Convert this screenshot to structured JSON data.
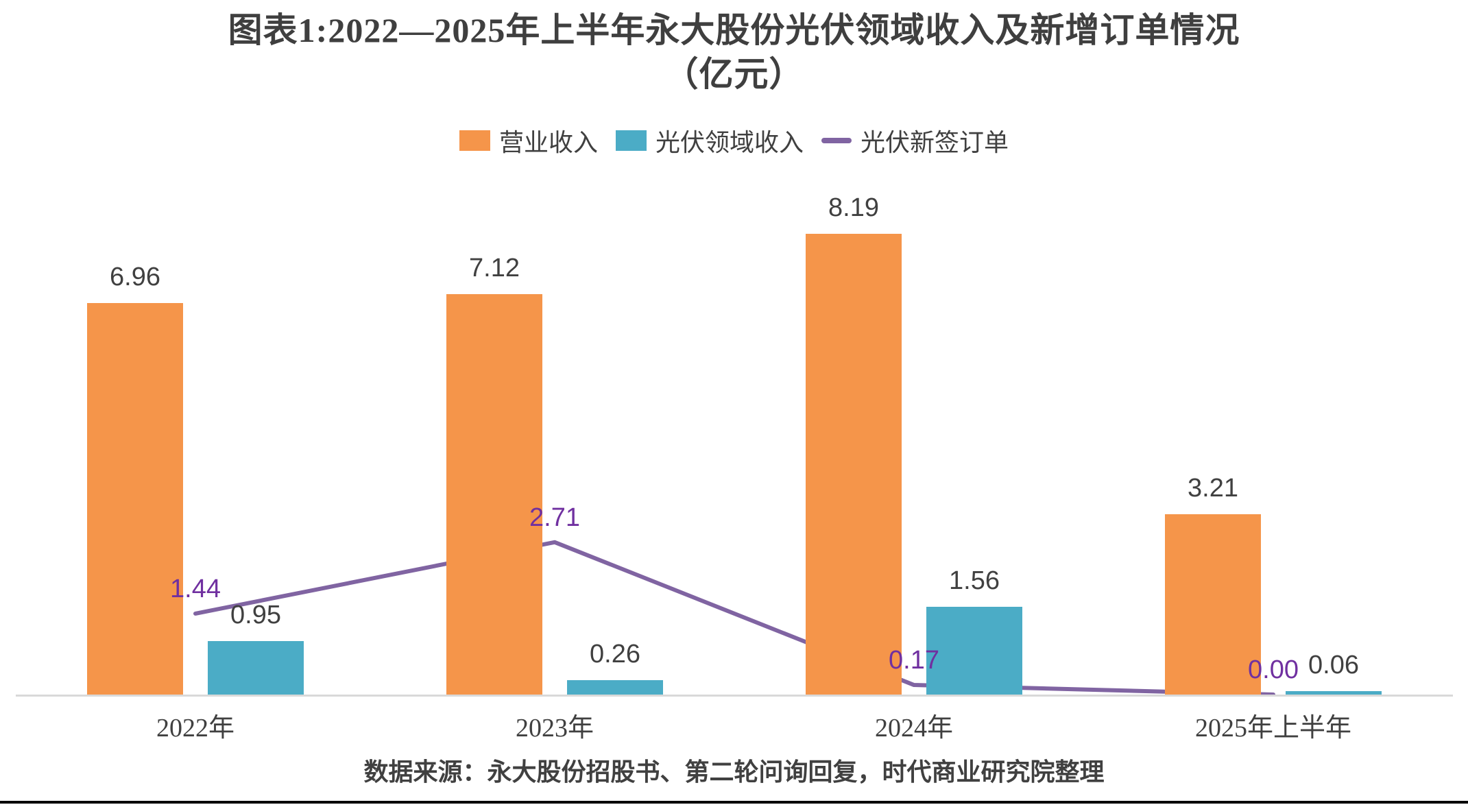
{
  "title": {
    "line1": "图表1:2022—2025年上半年永大股份光伏领域收入及新增订单情况",
    "line2": "（亿元）"
  },
  "legend": [
    {
      "label": "营业收入",
      "swatch": "bar",
      "color": "#F5954A"
    },
    {
      "label": "光伏领域收入",
      "swatch": "bar",
      "color": "#4BACC6"
    },
    {
      "label": "光伏新签订单",
      "swatch": "line",
      "color": "#8064A2"
    }
  ],
  "source_note": "数据来源：永大股份招股书、第二轮问询回复，时代商业研究院整理",
  "colors": {
    "revenue_bar": "#F5954A",
    "pv_revenue_bar": "#4BACC6",
    "pv_orders_line": "#8064A2",
    "pv_orders_label": "#7030A0",
    "text": "#404040",
    "axis_line": "#D9D9D9",
    "bottom_rule": "#000000"
  },
  "chart_data": {
    "type": "bar",
    "title": "图表1:2022—2025年上半年永大股份光伏领域收入及新增订单情况（亿元）",
    "unit": "亿元",
    "categories": [
      "2022年",
      "2023年",
      "2024年",
      "2025年上半年"
    ],
    "series": [
      {
        "name": "营业收入",
        "type": "bar",
        "color": "#F5954A",
        "values": [
          6.96,
          7.12,
          8.19,
          3.21
        ]
      },
      {
        "name": "光伏领域收入",
        "type": "bar",
        "color": "#4BACC6",
        "values": [
          0.95,
          0.26,
          1.56,
          0.06
        ]
      },
      {
        "name": "光伏新签订单",
        "type": "line",
        "color": "#8064A2",
        "label_color": "#7030A0",
        "values": [
          1.44,
          2.71,
          0.17,
          0.0
        ]
      }
    ],
    "xlabel": "",
    "ylabel": "",
    "ylim": [
      0,
      9
    ],
    "grid": false,
    "y_axis_visible": false,
    "legend_position": "top",
    "value_labels_shown": true,
    "value_label_decimals": 2
  }
}
